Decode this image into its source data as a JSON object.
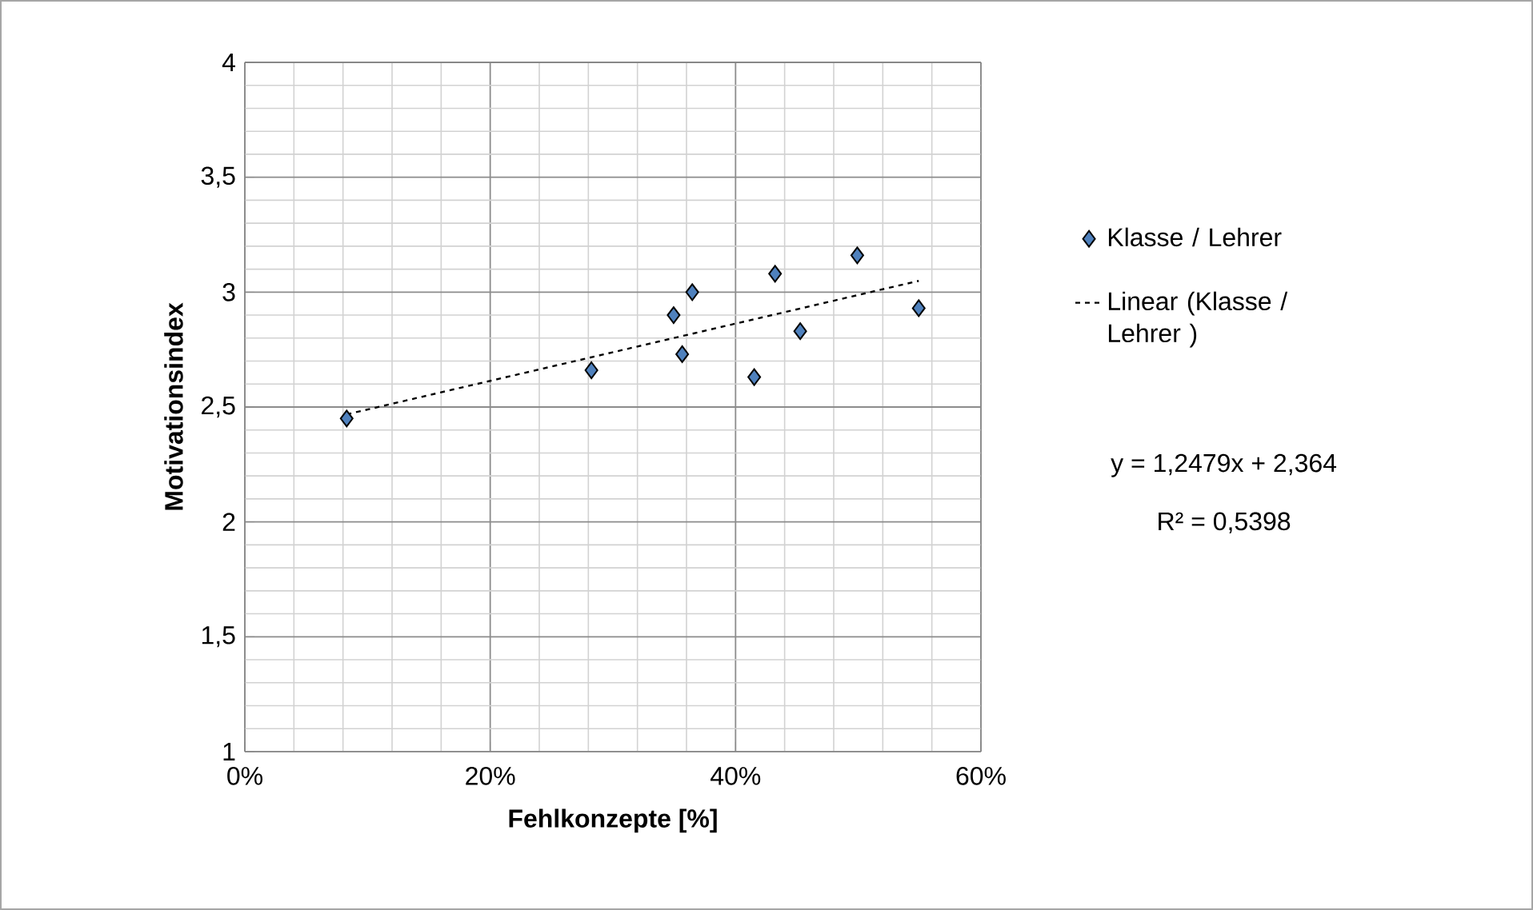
{
  "chart_data": {
    "type": "scatter",
    "xlabel": "Fehlkonzepte [%]",
    "ylabel": "Motivationsindex",
    "xlim": [
      0,
      0.6
    ],
    "xticks": [
      {
        "value": 0,
        "label": "0%"
      },
      {
        "value": 0.2,
        "label": "20%"
      },
      {
        "value": 0.4,
        "label": "40%"
      },
      {
        "value": 0.6,
        "label": "60%"
      }
    ],
    "ylim": [
      1,
      4
    ],
    "yticks": [
      1,
      {
        "value": 1.5,
        "label": "1,5"
      },
      2,
      {
        "value": 2.5,
        "label": "2,5"
      },
      3,
      {
        "value": 3.5,
        "label": "3,5"
      },
      4
    ],
    "grid": true,
    "legend": "right",
    "series": [
      {
        "name": "Klasse / Lehrer",
        "marker": "diamond",
        "color": "#4f81bd",
        "x": [
          0.083,
          0.2825,
          0.3495,
          0.3647,
          0.3565,
          0.4152,
          0.4322,
          0.4527,
          0.4992,
          0.5493
        ],
        "values": [
          2.45,
          2.66,
          2.9,
          3.0,
          2.73,
          2.63,
          3.08,
          2.83,
          3.16,
          2.93
        ]
      },
      {
        "name": "Linear (Klasse / Lehrer )",
        "type": "line",
        "line_style": "dashed",
        "marker": "none",
        "color": "#000000",
        "x": [
          0.083,
          0.5493
        ],
        "values": [
          2.468,
          3.049
        ]
      }
    ],
    "annotations": [
      "y = 1,2479x + 2,364",
      "R² = 0,5398"
    ]
  }
}
